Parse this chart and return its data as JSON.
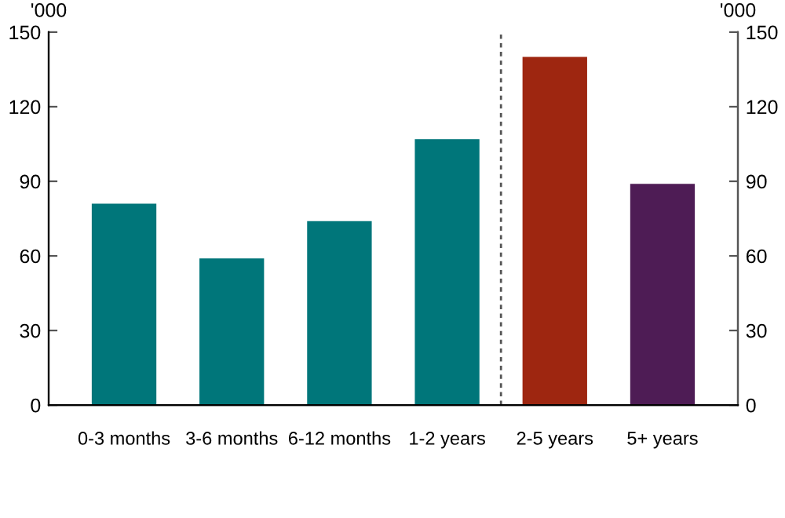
{
  "chart_data": {
    "type": "bar",
    "categories": [
      "0-3 months",
      "3-6 months",
      "6-12 months",
      "1-2 years",
      "2-5 years",
      "5+ years"
    ],
    "values": [
      81,
      59,
      74,
      107,
      140,
      89
    ],
    "colors": [
      "#00767a",
      "#00767a",
      "#00767a",
      "#00767a",
      "#9e2610",
      "#4e1c55"
    ],
    "ylabel": "'000",
    "y2label": "'000",
    "ylim": [
      0,
      150
    ],
    "yticks": [
      0,
      30,
      60,
      90,
      120,
      150
    ],
    "y2lim": [
      0,
      150
    ],
    "y2ticks": [
      0,
      30,
      60,
      90,
      120,
      150
    ],
    "grid": false,
    "legend": false
  }
}
